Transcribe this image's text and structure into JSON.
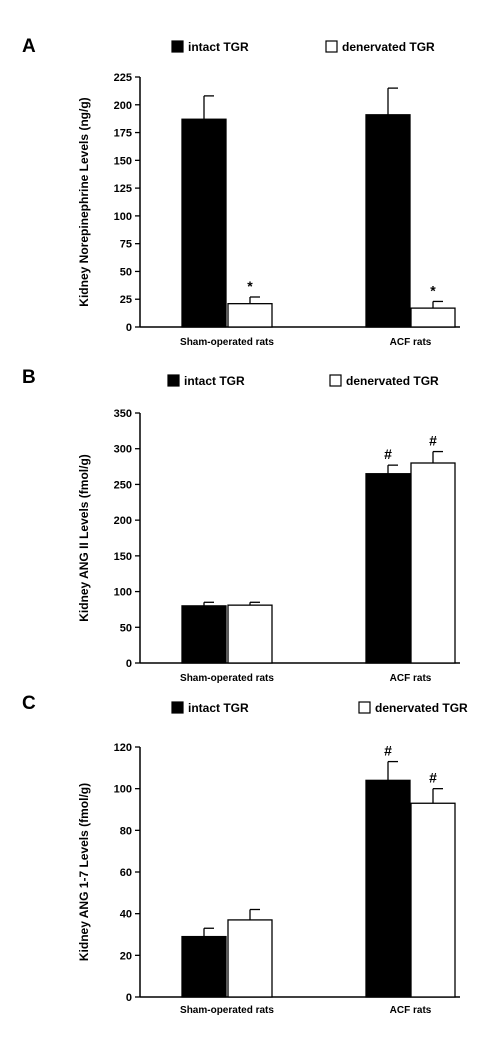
{
  "colors": {
    "intact": "#000000",
    "denervated": "#ffffff",
    "axis": "#000000"
  },
  "chart_data": [
    {
      "type": "bar",
      "panel": "A",
      "ylabel": "Kidney Norepinephrine Levels (ng/g)",
      "ylim": [
        0,
        225
      ],
      "yticks": [
        0,
        25,
        50,
        75,
        100,
        125,
        150,
        175,
        200,
        225
      ],
      "categories": [
        "Sham-operated rats",
        "ACF rats"
      ],
      "series": [
        {
          "name": "intact TGR",
          "values": [
            187,
            191
          ],
          "errors": [
            21,
            24
          ]
        },
        {
          "name": "denervated TGR",
          "values": [
            21,
            17
          ],
          "errors": [
            6,
            6
          ]
        }
      ],
      "annotations": [
        {
          "category": 0,
          "series": 1,
          "text": "*"
        },
        {
          "category": 1,
          "series": 1,
          "text": "*"
        }
      ]
    },
    {
      "type": "bar",
      "panel": "B",
      "ylabel": "Kidney ANG II Levels (fmol/g)",
      "ylim": [
        0,
        350
      ],
      "yticks": [
        0,
        50,
        100,
        150,
        200,
        250,
        300,
        350
      ],
      "categories": [
        "Sham-operated rats",
        "ACF rats"
      ],
      "series": [
        {
          "name": "intact TGR",
          "values": [
            80,
            265
          ],
          "errors": [
            5,
            12
          ]
        },
        {
          "name": "denervated TGR",
          "values": [
            81,
            280
          ],
          "errors": [
            4,
            16
          ]
        }
      ],
      "annotations": [
        {
          "category": 1,
          "series": 0,
          "text": "#"
        },
        {
          "category": 1,
          "series": 1,
          "text": "#"
        }
      ]
    },
    {
      "type": "bar",
      "panel": "C",
      "ylabel": "Kidney ANG 1-7 Levels (fmol/g)",
      "ylim": [
        0,
        120
      ],
      "yticks": [
        0,
        20,
        40,
        60,
        80,
        100,
        120
      ],
      "categories": [
        "Sham-operated rats",
        "ACF rats"
      ],
      "series": [
        {
          "name": "intact TGR",
          "values": [
            29,
            104
          ],
          "errors": [
            4,
            9
          ]
        },
        {
          "name": "denervated TGR",
          "values": [
            37,
            93
          ],
          "errors": [
            5,
            7
          ]
        }
      ],
      "annotations": [
        {
          "category": 1,
          "series": 0,
          "text": "#"
        },
        {
          "category": 1,
          "series": 1,
          "text": "#"
        }
      ]
    }
  ]
}
